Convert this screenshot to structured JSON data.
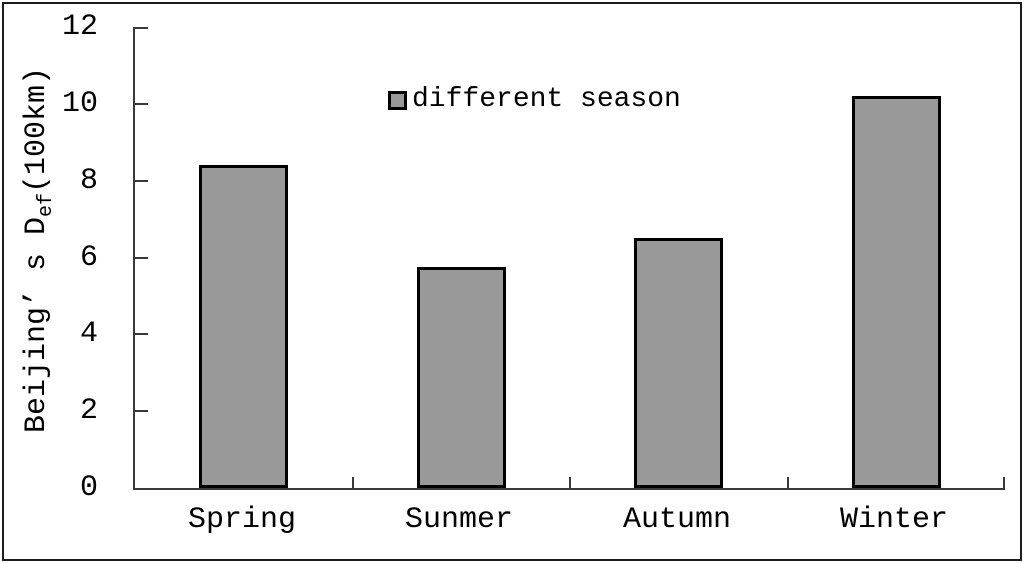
{
  "chart_data": {
    "type": "bar",
    "title": "",
    "categories": [
      "Spring",
      "Sunmer",
      "Autumn",
      "Winter"
    ],
    "values": [
      8.4,
      5.75,
      6.5,
      10.2
    ],
    "series_name": "different season",
    "legend": {
      "label": "different season",
      "position": "top-center",
      "marker": "square"
    },
    "ylabel_prefix": "Beijing’ s D",
    "ylabel_subscript": "ef",
    "ylabel_suffix": "(100km)",
    "ylabel_full": "Beijing’ s Def(100km)",
    "xlabel": "",
    "ylim": [
      0,
      12
    ],
    "yticks": [
      0,
      2,
      4,
      6,
      8,
      10,
      12
    ],
    "grid": false,
    "colors": {
      "bar_fill": "#999999",
      "bar_border": "#000000",
      "axis": "#3a3a3a",
      "text": "#000000",
      "background": "#ffffff"
    }
  }
}
